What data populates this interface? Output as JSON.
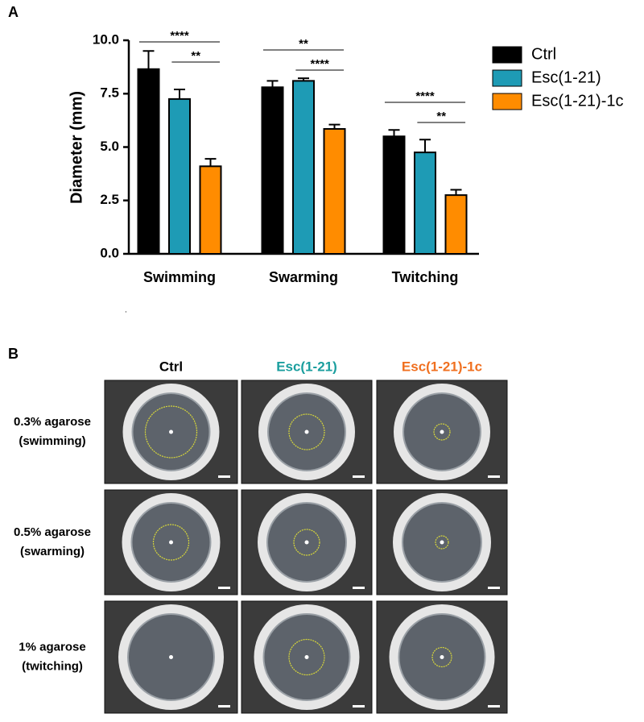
{
  "panel_a_label": "A",
  "panel_b_label": "B",
  "chart_data": {
    "type": "bar",
    "y_label": "Diameter (mm)",
    "categories": [
      "Swimming",
      "Swarming",
      "Twitching"
    ],
    "series": [
      {
        "name": "Ctrl",
        "color": "#000000",
        "values": [
          8.65,
          7.8,
          5.5
        ],
        "errors": [
          0.85,
          0.3,
          0.3
        ]
      },
      {
        "name": "Esc(1-21)",
        "color": "#1e9bb5",
        "values": [
          7.25,
          8.1,
          4.75
        ],
        "errors": [
          0.45,
          0.12,
          0.6
        ]
      },
      {
        "name": "Esc(1-21)-1c",
        "color": "#ff8c00",
        "values": [
          4.1,
          5.85,
          2.75
        ],
        "errors": [
          0.35,
          0.2,
          0.25
        ]
      }
    ],
    "ylim": [
      0,
      10
    ],
    "yticks": [
      {
        "value": 0,
        "label": "0.0"
      },
      {
        "value": 2.5,
        "label": "2.5"
      },
      {
        "value": 5,
        "label": "5.0"
      },
      {
        "value": 7.5,
        "label": "7.5"
      },
      {
        "value": 10,
        "label": "10.0"
      }
    ],
    "significance": [
      [
        "****",
        "**"
      ],
      [
        "**",
        "****"
      ],
      [
        "****",
        "**"
      ]
    ],
    "legend": "right"
  },
  "panel_b": {
    "columns": [
      {
        "text": "Ctrl",
        "color": "#000000"
      },
      {
        "text": "Esc(1-21)",
        "color": "#1a9e9e"
      },
      {
        "text": "Esc(1-21)-1c",
        "color": "#f07020"
      }
    ],
    "rows": [
      [
        "0.3% agarose",
        "(swimming)"
      ],
      [
        "0.5% agarose",
        "(swarming)"
      ],
      [
        "1%  agarose",
        "(twitching)"
      ]
    ]
  }
}
